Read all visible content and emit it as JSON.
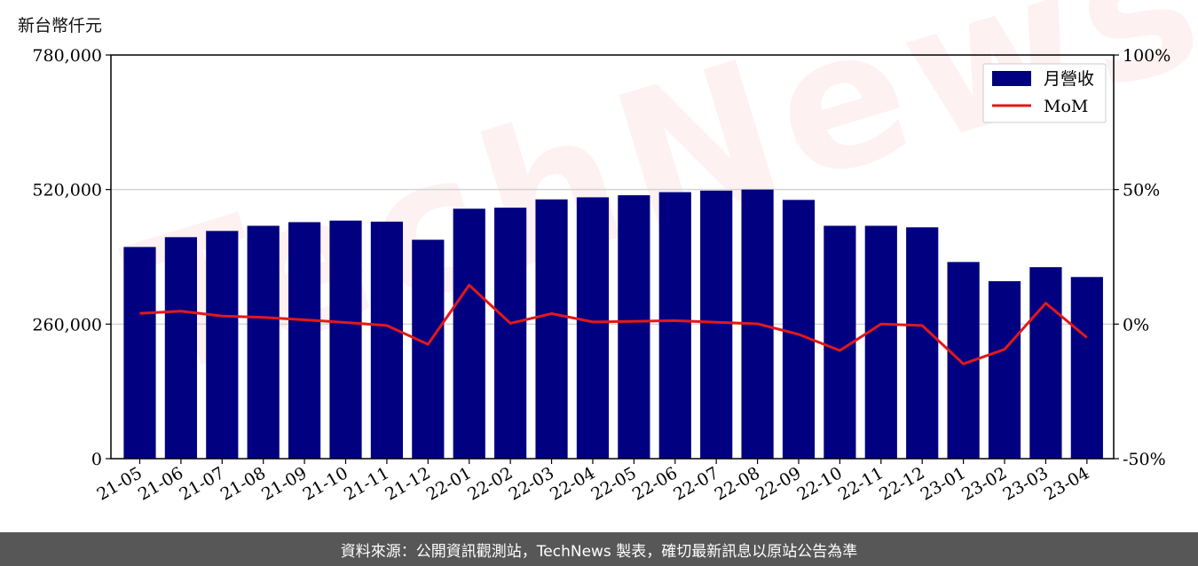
{
  "unit_label": "新台幣仟元",
  "footer": "資料來源：公開資訊觀測站，TechNews 製表，確切最新訊息以原站公告為準",
  "watermark": "TechNews",
  "colors": {
    "bar": "#000080",
    "line": "#e0191a",
    "grid": "#d4d4d4",
    "footer_bg": "#575757"
  },
  "chart_data": {
    "type": "bar",
    "categories": [
      "21-05",
      "21-06",
      "21-07",
      "21-08",
      "21-09",
      "21-10",
      "21-11",
      "21-12",
      "22-01",
      "22-02",
      "22-03",
      "22-04",
      "22-05",
      "22-06",
      "22-07",
      "22-08",
      "22-09",
      "22-10",
      "22-11",
      "22-12",
      "23-01",
      "23-02",
      "23-03",
      "23-04"
    ],
    "series": [
      {
        "name": "月營收",
        "type": "bar",
        "axis": "left",
        "values": [
          409000,
          428000,
          440000,
          450000,
          457000,
          460000,
          458000,
          423000,
          483000,
          485000,
          501000,
          505000,
          509000,
          515000,
          518000,
          520000,
          500000,
          450000,
          450000,
          447000,
          380000,
          343000,
          370000,
          351000
        ]
      },
      {
        "name": "MoM",
        "type": "line",
        "axis": "right",
        "values": [
          4.0,
          4.8,
          3.0,
          2.5,
          1.6,
          0.6,
          -0.5,
          -7.5,
          14.5,
          0.3,
          3.9,
          0.8,
          1.0,
          1.3,
          0.7,
          0.1,
          -3.8,
          -9.8,
          0.0,
          -0.5,
          -14.8,
          -9.4,
          7.8,
          -5.0
        ]
      }
    ],
    "y_left": {
      "min": 0,
      "max": 780000,
      "ticks": [
        0,
        260000,
        520000,
        780000
      ],
      "tick_labels": [
        "0",
        "260,000",
        "520,000",
        "780,000"
      ]
    },
    "y_right": {
      "min": -50,
      "max": 100,
      "ticks": [
        -50,
        0,
        50,
        100
      ],
      "tick_labels": [
        "-50%",
        "0%",
        "50%",
        "100%"
      ]
    },
    "grid": "horizontal",
    "legend": "top-right"
  }
}
